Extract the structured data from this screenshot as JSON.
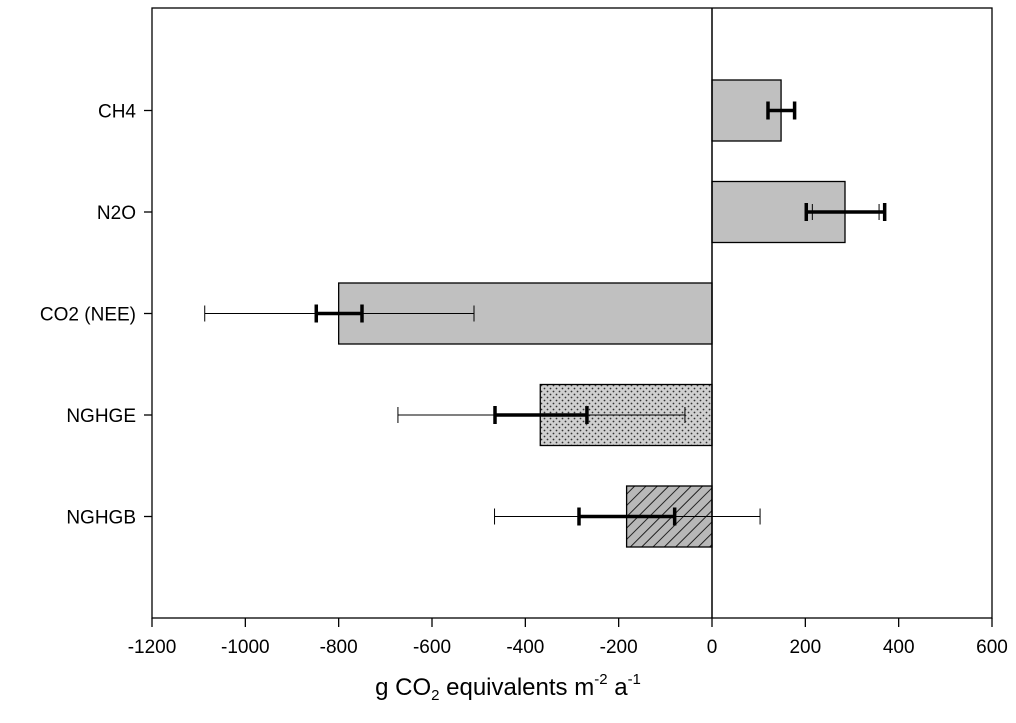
{
  "chart_data": {
    "type": "bar",
    "orientation": "horizontal",
    "categories": [
      "CH4",
      "N2O",
      "CO2 (NEE)",
      "NGHGE",
      "NGHGB"
    ],
    "values": [
      148,
      285,
      -800,
      -368,
      -183
    ],
    "error_bars_inner": [
      {
        "low": 120,
        "high": 177
      },
      {
        "low": 202,
        "high": 370
      },
      {
        "low": -848,
        "high": -750
      },
      {
        "low": -465,
        "high": -268
      },
      {
        "low": -285,
        "high": -80
      }
    ],
    "error_bars_outer": [
      {
        "low": 120,
        "high": 177
      },
      {
        "low": 215,
        "high": 358
      },
      {
        "low": -1087,
        "high": -510
      },
      {
        "low": -673,
        "high": -58
      },
      {
        "low": -466,
        "high": 103
      }
    ],
    "bar_fills": [
      "solid",
      "solid",
      "solid",
      "dotted",
      "hatched"
    ],
    "bar_color": "#c0c0c0",
    "xlim": [
      -1200,
      600
    ],
    "xticks": [
      -1200,
      -1000,
      -800,
      -600,
      -400,
      -200,
      0,
      200,
      400,
      600
    ],
    "xlabel": {
      "t1": "g CO",
      "sub1": "2",
      "t2": " equivalents m",
      "sup1": "-2",
      "t3": " a",
      "sup2": "-1"
    },
    "grid": false
  }
}
